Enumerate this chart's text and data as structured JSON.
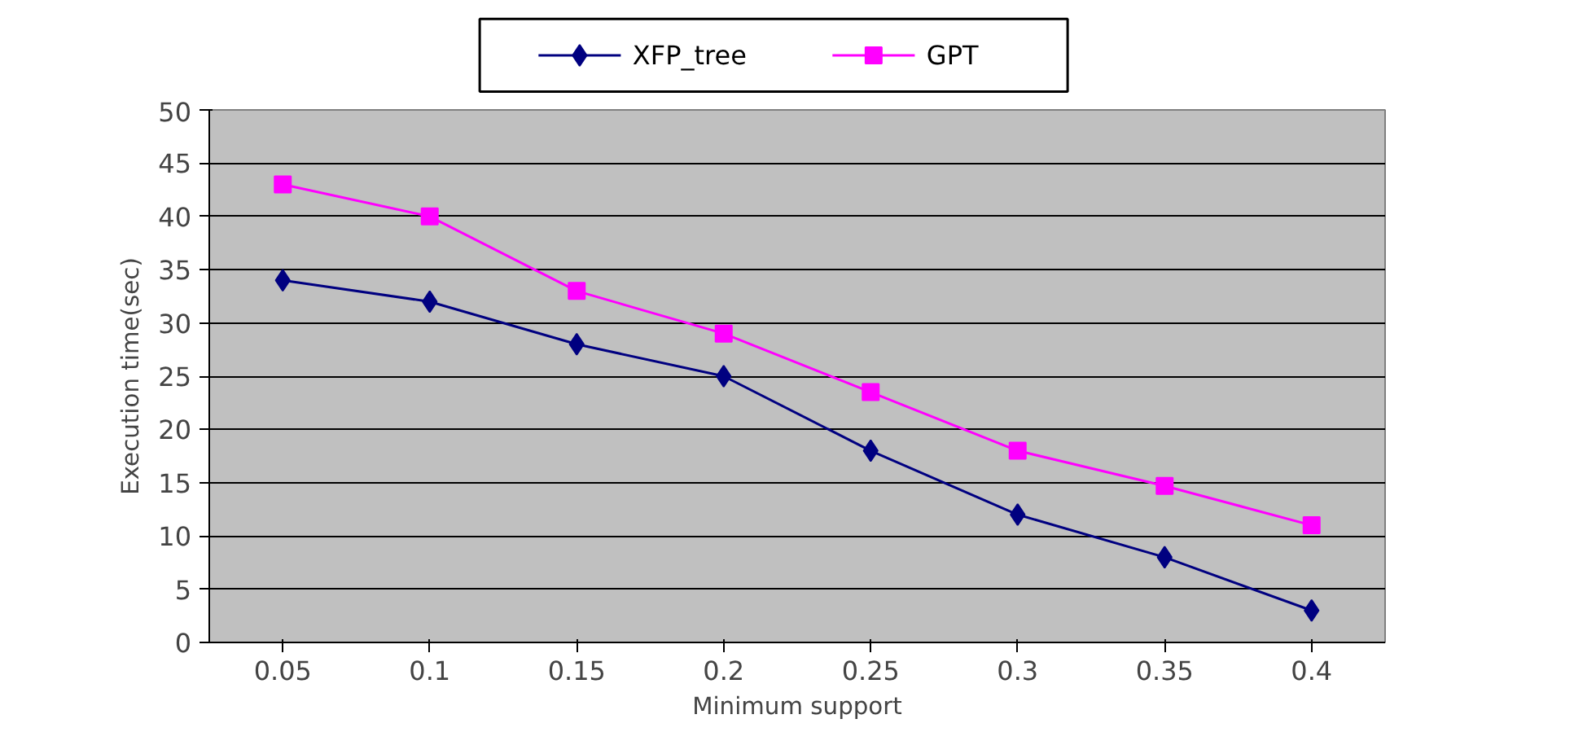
{
  "chart_data": {
    "type": "line",
    "xlabel": "Minimum support",
    "ylabel": "Execution time(sec)",
    "categories": [
      "0.05",
      "0.1",
      "0.15",
      "0.2",
      "0.25",
      "0.3",
      "0.35",
      "0.4"
    ],
    "series": [
      {
        "name": "XFP_tree",
        "color": "#000080",
        "marker": "diamond",
        "values": [
          34,
          32,
          28,
          25,
          18,
          12,
          8,
          3
        ]
      },
      {
        "name": "GPT",
        "color": "#ff00ff",
        "marker": "square",
        "values": [
          43,
          40,
          33,
          29,
          23.5,
          18,
          14.7,
          11
        ]
      }
    ],
    "ylim": [
      0,
      50
    ],
    "yticks": [
      0,
      5,
      10,
      15,
      20,
      25,
      30,
      35,
      40,
      45,
      50
    ],
    "grid": "y",
    "legend": "top",
    "line_style": "solid"
  }
}
